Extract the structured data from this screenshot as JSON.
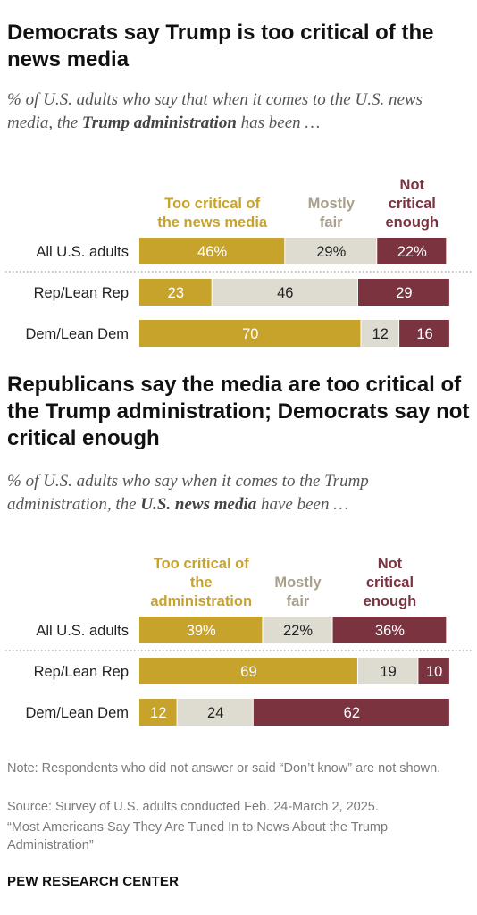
{
  "colors": {
    "too": "#c8a32c",
    "fair": "#dedbd0",
    "not": "#7b3340",
    "fair_label": "#a9a08c"
  },
  "chart1": {
    "title": "Democrats say Trump is too critical of the news media",
    "subtitle_pre": "% of U.S. adults who say that when it comes to the U.S. news media, the ",
    "subtitle_bold": "Trump administration",
    "subtitle_post": " has been …"
  },
  "chart2": {
    "title": "Republicans say the media are too critical of the Trump administration; Democrats say not critical enough",
    "subtitle_pre": "% of U.S. adults who say when it comes to the Trump administration, the ",
    "subtitle_bold": "U.S. news media",
    "subtitle_post": " have been …"
  },
  "chart_data": [
    {
      "type": "bar",
      "stacked": true,
      "orientation": "horizontal",
      "categories": [
        "All U.S. adults",
        "Rep/Lean Rep",
        "Dem/Lean Dem"
      ],
      "series": [
        {
          "name": "Too critical of the news media",
          "values": [
            46,
            23,
            70
          ],
          "labels": [
            "46%",
            "23",
            "70"
          ]
        },
        {
          "name": "Mostly fair",
          "values": [
            29,
            46,
            12
          ],
          "labels": [
            "29%",
            "46",
            "12"
          ]
        },
        {
          "name": "Not critical enough",
          "values": [
            22,
            29,
            16
          ],
          "labels": [
            "22%",
            "29",
            "16"
          ]
        }
      ]
    },
    {
      "type": "bar",
      "stacked": true,
      "orientation": "horizontal",
      "categories": [
        "All U.S. adults",
        "Rep/Lean Rep",
        "Dem/Lean Dem"
      ],
      "series": [
        {
          "name": "Too critical of the administration",
          "values": [
            39,
            69,
            12
          ],
          "labels": [
            "39%",
            "69",
            "12"
          ]
        },
        {
          "name": "Mostly fair",
          "values": [
            22,
            19,
            24
          ],
          "labels": [
            "22%",
            "19",
            "24"
          ]
        },
        {
          "name": "Not critical enough",
          "values": [
            36,
            10,
            62
          ],
          "labels": [
            "36%",
            "10",
            "62"
          ]
        }
      ]
    }
  ],
  "notes": {
    "note": "Note: Respondents who did not answer or said “Don’t know” are not shown.",
    "source": "Source: Survey of U.S. adults conducted Feb. 24-March 2, 2025.",
    "report": "“Most Americans Say They Are Tuned In to News About the Trump Administration”"
  },
  "brand": "PEW RESEARCH CENTER"
}
